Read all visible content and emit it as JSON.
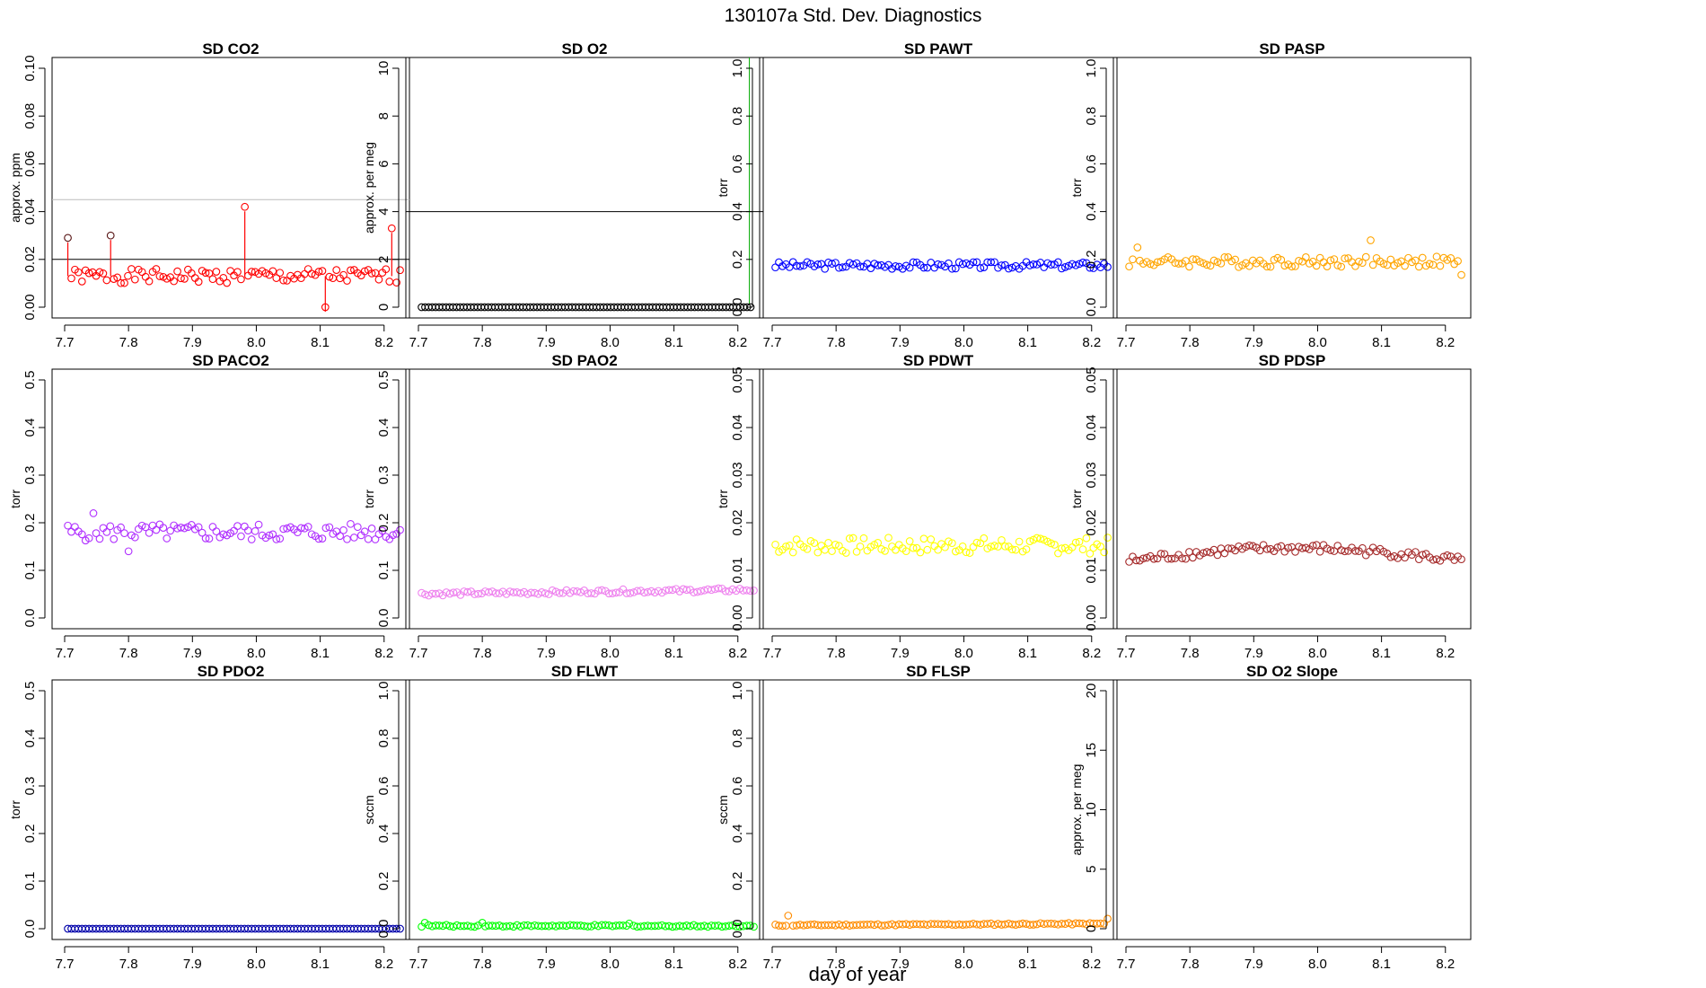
{
  "title": "130107a   Std. Dev. Diagnostics",
  "xlabel": "day of year",
  "chart_data": [
    {
      "type": "scatter",
      "title": "SD CO2",
      "ylabel": "approx. ppm",
      "xlim": [
        7.7,
        8.22
      ],
      "ylim": [
        0,
        0.1
      ],
      "xticks": [
        "7.7",
        "7.8",
        "7.9",
        "8.0",
        "8.1",
        "8.2"
      ],
      "yticks": [
        "0.00",
        "0.02",
        "0.04",
        "0.06",
        "0.08",
        "0.10"
      ],
      "color": "#ff0000",
      "hlines": [
        {
          "y": 0.02,
          "color": "#000000"
        },
        {
          "y": 0.045,
          "color": "#bbbbbb"
        }
      ],
      "series_pattern": {
        "kind": "noisy",
        "start": 7.705,
        "end": 8.225,
        "n": 95,
        "base": 0.013,
        "amp": 0.003,
        "seed": 1
      },
      "outliers": [
        {
          "x": 7.705,
          "y": 0.029
        },
        {
          "x": 7.772,
          "y": 0.03
        },
        {
          "x": 7.982,
          "y": 0.042
        },
        {
          "x": 8.108,
          "y": 0.0
        },
        {
          "x": 8.212,
          "y": 0.033
        }
      ],
      "dark_points": [
        {
          "x": 7.705,
          "y": 0.029
        },
        {
          "x": 7.772,
          "y": 0.03
        }
      ],
      "connect": true
    },
    {
      "type": "scatter",
      "title": "SD O2",
      "ylabel": "approx. per meg",
      "xlim": [
        7.7,
        8.22
      ],
      "ylim": [
        0,
        10
      ],
      "xticks": [
        "7.7",
        "7.8",
        "7.9",
        "8.0",
        "8.1",
        "8.2"
      ],
      "yticks": [
        "0",
        "2",
        "4",
        "6",
        "8",
        "10"
      ],
      "color": "#000000",
      "hlines": [
        {
          "y": 4,
          "color": "#000000"
        }
      ],
      "vlines": [
        {
          "x": 8.218,
          "color": "#00aa00"
        }
      ],
      "series_pattern": {
        "kind": "flat",
        "start": 7.705,
        "end": 8.22,
        "n": 95,
        "base": 0.0,
        "amp": 0,
        "seed": 2
      }
    },
    {
      "type": "scatter",
      "title": "SD PAWT",
      "ylabel": "torr",
      "xlim": [
        7.7,
        8.22
      ],
      "ylim": [
        0,
        1
      ],
      "xticks": [
        "7.7",
        "7.8",
        "7.9",
        "8.0",
        "8.1",
        "8.2"
      ],
      "yticks": [
        "0.0",
        "0.2",
        "0.4",
        "0.6",
        "0.8",
        "1.0"
      ],
      "color": "#0000ff",
      "series_pattern": {
        "kind": "noisy",
        "start": 7.705,
        "end": 8.225,
        "n": 95,
        "base": 0.175,
        "amp": 0.015,
        "seed": 3
      }
    },
    {
      "type": "scatter",
      "title": "SD PASP",
      "ylabel": "torr",
      "xlim": [
        7.7,
        8.22
      ],
      "ylim": [
        0,
        1
      ],
      "xticks": [
        "7.7",
        "7.8",
        "7.9",
        "8.0",
        "8.1",
        "8.2"
      ],
      "yticks": [
        "0.0",
        "0.2",
        "0.4",
        "0.6",
        "0.8",
        "1.0"
      ],
      "color": "#ffa500",
      "series_pattern": {
        "kind": "noisy",
        "start": 7.705,
        "end": 8.225,
        "n": 95,
        "base": 0.19,
        "amp": 0.022,
        "seed": 4
      },
      "outliers": [
        {
          "x": 7.718,
          "y": 0.25
        },
        {
          "x": 8.083,
          "y": 0.28
        },
        {
          "x": 8.225,
          "y": 0.135
        }
      ]
    },
    {
      "type": "scatter",
      "title": "SD PACO2",
      "ylabel": "torr",
      "xlim": [
        7.7,
        8.22
      ],
      "ylim": [
        0,
        0.5
      ],
      "xticks": [
        "7.7",
        "7.8",
        "7.9",
        "8.0",
        "8.1",
        "8.2"
      ],
      "yticks": [
        "0.0",
        "0.1",
        "0.2",
        "0.3",
        "0.4",
        "0.5"
      ],
      "color": "#b030ff",
      "series_pattern": {
        "kind": "noisy",
        "start": 7.705,
        "end": 8.225,
        "n": 95,
        "base": 0.18,
        "amp": 0.018,
        "seed": 5
      },
      "outliers": [
        {
          "x": 7.745,
          "y": 0.22
        },
        {
          "x": 7.8,
          "y": 0.14
        }
      ]
    },
    {
      "type": "scatter",
      "title": "SD PAO2",
      "ylabel": "torr",
      "xlim": [
        7.7,
        8.22
      ],
      "ylim": [
        0,
        0.5
      ],
      "xticks": [
        "7.7",
        "7.8",
        "7.9",
        "8.0",
        "8.1",
        "8.2"
      ],
      "yticks": [
        "0.0",
        "0.1",
        "0.2",
        "0.3",
        "0.4",
        "0.5"
      ],
      "color": "#ee82ee",
      "series_pattern": {
        "kind": "rising",
        "start": 7.705,
        "end": 8.225,
        "n": 95,
        "base": 0.055,
        "amp": 0.006,
        "seed": 6
      }
    },
    {
      "type": "scatter",
      "title": "SD PDWT",
      "ylabel": "torr",
      "xlim": [
        7.7,
        8.22
      ],
      "ylim": [
        0,
        0.05
      ],
      "xticks": [
        "7.7",
        "7.8",
        "7.9",
        "8.0",
        "8.1",
        "8.2"
      ],
      "yticks": [
        "0.00",
        "0.01",
        "0.02",
        "0.03",
        "0.04",
        "0.05"
      ],
      "color": "#ffff00",
      "series_pattern": {
        "kind": "noisy",
        "start": 7.705,
        "end": 8.225,
        "n": 95,
        "base": 0.0152,
        "amp": 0.0017,
        "seed": 7
      }
    },
    {
      "type": "scatter",
      "title": "SD PDSP",
      "ylabel": "torr",
      "xlim": [
        7.7,
        8.22
      ],
      "ylim": [
        0,
        0.05
      ],
      "xticks": [
        "7.7",
        "7.8",
        "7.9",
        "8.0",
        "8.1",
        "8.2"
      ],
      "yticks": [
        "0.00",
        "0.01",
        "0.02",
        "0.03",
        "0.04",
        "0.05"
      ],
      "color": "#a52a2a",
      "series_pattern": {
        "kind": "hump",
        "start": 7.705,
        "end": 8.225,
        "n": 95,
        "base": 0.012,
        "amp": 0.0012,
        "seed": 8
      }
    },
    {
      "type": "scatter",
      "title": "SD PDO2",
      "ylabel": "torr",
      "xlim": [
        7.7,
        8.22
      ],
      "ylim": [
        0,
        0.5
      ],
      "xticks": [
        "7.7",
        "7.8",
        "7.9",
        "8.0",
        "8.1",
        "8.2"
      ],
      "yticks": [
        "0.0",
        "0.1",
        "0.2",
        "0.3",
        "0.4",
        "0.5"
      ],
      "color": "#0000aa",
      "series_pattern": {
        "kind": "flat",
        "start": 7.705,
        "end": 8.225,
        "n": 95,
        "base": 0.0,
        "amp": 0,
        "seed": 9
      }
    },
    {
      "type": "scatter",
      "title": "SD FLWT",
      "ylabel": "sccm",
      "xlim": [
        7.7,
        8.22
      ],
      "ylim": [
        0,
        1
      ],
      "xticks": [
        "7.7",
        "7.8",
        "7.9",
        "8.0",
        "8.1",
        "8.2"
      ],
      "yticks": [
        "0.0",
        "0.2",
        "0.4",
        "0.6",
        "0.8",
        "1.0"
      ],
      "color": "#00ff00",
      "series_pattern": {
        "kind": "noisy",
        "start": 7.705,
        "end": 8.225,
        "n": 95,
        "base": 0.012,
        "amp": 0.004,
        "seed": 10
      },
      "outliers": [
        {
          "x": 7.71,
          "y": 0.025
        },
        {
          "x": 7.8,
          "y": 0.025
        },
        {
          "x": 8.03,
          "y": 0.022
        }
      ]
    },
    {
      "type": "scatter",
      "title": "SD FLSP",
      "ylabel": "sccm",
      "xlim": [
        7.7,
        8.22
      ],
      "ylim": [
        0,
        1
      ],
      "xticks": [
        "7.7",
        "7.8",
        "7.9",
        "8.0",
        "8.1",
        "8.2"
      ],
      "yticks": [
        "0.0",
        "0.2",
        "0.4",
        "0.6",
        "0.8",
        "1.0"
      ],
      "color": "#ff8c00",
      "series_pattern": {
        "kind": "rising",
        "start": 7.705,
        "end": 8.225,
        "n": 95,
        "base": 0.018,
        "amp": 0.005,
        "seed": 11
      },
      "outliers": [
        {
          "x": 7.725,
          "y": 0.055
        },
        {
          "x": 8.225,
          "y": 0.042
        }
      ]
    },
    {
      "type": "scatter",
      "title": "SD O2 Slope",
      "ylabel": "approx. per meg",
      "xlim": [
        7.7,
        8.22
      ],
      "ylim": [
        0,
        20
      ],
      "xticks": [
        "7.7",
        "7.8",
        "7.9",
        "8.0",
        "8.1",
        "8.2"
      ],
      "yticks": [
        "0",
        "5",
        "10",
        "15",
        "20"
      ],
      "color": "#000000",
      "empty": true
    }
  ]
}
